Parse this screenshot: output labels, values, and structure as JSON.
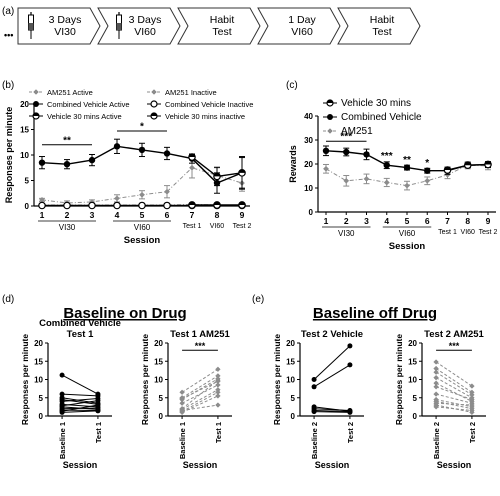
{
  "panel_labels": {
    "a": "(a)",
    "b": "(b)",
    "c": "(c)",
    "d": "(d)",
    "e": "(e)"
  },
  "timeline": {
    "ellipsis": "•••",
    "steps": [
      {
        "lines": [
          "3 Days",
          "VI30"
        ],
        "syringe": true
      },
      {
        "lines": [
          "3 Days",
          "VI60"
        ],
        "syringe": true
      },
      {
        "lines": [
          "Habit",
          "Test"
        ],
        "syringe": false
      },
      {
        "lines": [
          "1 Day",
          "VI60"
        ],
        "syringe": false
      },
      {
        "lines": [
          "Habit",
          "Test"
        ],
        "syringe": false
      }
    ]
  },
  "group_titles": {
    "d": "Baseline on Drug",
    "e": "Baseline off Drug"
  },
  "colors": {
    "black": "#000000",
    "gray": "#8c8c8c",
    "arrow_outline": "#333333"
  },
  "chart_data": [
    {
      "panel": "b",
      "type": "line",
      "ylabel": "Responses per minute",
      "xlabel": "Session",
      "ylim": [
        0,
        20
      ],
      "yticks": [
        0,
        5,
        10,
        15,
        20
      ],
      "x_ticks": [
        "1",
        "2",
        "3",
        "4",
        "5",
        "6",
        "7",
        "8",
        "9"
      ],
      "x_extra_labels": [
        {
          "text": "Test 1",
          "pos": 7
        },
        {
          "text": "VI60",
          "pos": 8
        },
        {
          "text": "Test 2",
          "pos": 9
        }
      ],
      "brackets": [
        {
          "text": "VI30",
          "from": 1,
          "to": 3
        },
        {
          "text": "VI60",
          "from": 4,
          "to": 6
        }
      ],
      "sig_bars": [
        {
          "from": 1,
          "to": 3,
          "y": 12.0,
          "text": "**"
        },
        {
          "from": 4,
          "to": 6,
          "y": 14.7,
          "text": "*"
        }
      ],
      "legend": [
        {
          "text": "AM251 Active",
          "marker": "diamond",
          "color": "#8c8c8c",
          "dash": true
        },
        {
          "text": "AM251 Inactive",
          "marker": "diamond",
          "color": "#8c8c8c",
          "dash": true
        },
        {
          "text": "Combined Vehicle Active",
          "marker": "circle",
          "color": "#000000",
          "dash": false
        },
        {
          "text": "Combined Vehicle Inactive",
          "marker": "circle-open",
          "color": "#000000",
          "dash": false
        },
        {
          "text": "Vehicle 30 mins Active",
          "marker": "half",
          "color": "#000000",
          "dash": false
        },
        {
          "text": "Vehicle 30 mins inactive",
          "marker": "half",
          "color": "#000000",
          "dash": false
        }
      ],
      "series": [
        {
          "name": "AM251 Active",
          "color": "#8c8c8c",
          "marker": "diamond",
          "dash": true,
          "x": [
            1,
            2,
            3,
            4,
            5,
            6,
            7,
            8,
            9
          ],
          "y": [
            1.2,
            0.6,
            0.8,
            1.5,
            2.2,
            2.8,
            7.5,
            6.0,
            4.5
          ],
          "err": [
            0.3,
            0.4,
            0.4,
            0.7,
            0.8,
            1.2,
            2.0,
            1.5,
            1.6
          ]
        },
        {
          "name": "AM251 Inactive",
          "color": "#8c8c8c",
          "marker": "diamond",
          "dash": true,
          "x": [
            1,
            2,
            3,
            4,
            5,
            6,
            7,
            8,
            9
          ],
          "y": [
            0.2,
            0.2,
            0.2,
            0.2,
            0.2,
            0.2,
            0.3,
            0.2,
            0.2
          ],
          "err": [
            0.1,
            0.1,
            0.1,
            0.1,
            0.1,
            0.1,
            0.2,
            0.1,
            0.1
          ]
        },
        {
          "name": "Combined Vehicle Active",
          "color": "#000000",
          "marker": "circle",
          "dash": false,
          "x": [
            1,
            2,
            3,
            4,
            5,
            6,
            7,
            8,
            9
          ],
          "y": [
            8.5,
            8.2,
            9.0,
            11.7,
            11.0,
            10.3,
            9.3,
            4.5,
            6.5
          ],
          "err": [
            1.2,
            0.9,
            1.1,
            1.4,
            1.3,
            1.2,
            0.9,
            2.0,
            3.2
          ]
        },
        {
          "name": "Combined Vehicle Inactive",
          "color": "#000000",
          "marker": "circle-open",
          "dash": false,
          "x": [
            1,
            2,
            3,
            4,
            5,
            6,
            7,
            8,
            9
          ],
          "y": [
            0.1,
            0.1,
            0.1,
            0.1,
            0.1,
            0.1,
            0.1,
            0.1,
            0.1
          ],
          "err": [
            0.05,
            0.05,
            0.05,
            0.05,
            0.05,
            0.05,
            0.05,
            0.05,
            0.05
          ]
        },
        {
          "name": "Vehicle 30 mins Active",
          "color": "#000000",
          "marker": "half",
          "dash": false,
          "x": [
            7,
            8,
            9
          ],
          "y": [
            9.6,
            5.8,
            6.5
          ],
          "err": [
            0.5,
            1.8,
            3.0
          ]
        },
        {
          "name": "Vehicle 30 mins inactive",
          "color": "#000000",
          "marker": "half",
          "dash": false,
          "x": [
            7,
            8,
            9
          ],
          "y": [
            0.2,
            0.2,
            0.2
          ],
          "err": [
            0.1,
            0.1,
            0.1
          ]
        }
      ]
    },
    {
      "panel": "c",
      "type": "line",
      "ylabel": "Rewards",
      "xlabel": "Session",
      "ylim": [
        0,
        40
      ],
      "yticks": [
        0,
        10,
        20,
        30,
        40
      ],
      "x_ticks": [
        "1",
        "2",
        "3",
        "4",
        "5",
        "6",
        "7",
        "8",
        "9"
      ],
      "x_extra_labels": [
        {
          "text": "Test 1",
          "pos": 7
        },
        {
          "text": "VI60",
          "pos": 8
        },
        {
          "text": "Test 2",
          "pos": 9
        }
      ],
      "brackets": [
        {
          "text": "VI30",
          "from": 1,
          "to": 3
        },
        {
          "text": "VI60",
          "from": 4,
          "to": 6
        }
      ],
      "sig_bars": [
        {
          "from": 1,
          "to": 3,
          "y": 29.5,
          "text": "***"
        }
      ],
      "point_stars": [
        {
          "x": 4,
          "y": 22.0,
          "text": "***"
        },
        {
          "x": 5,
          "y": 20.5,
          "text": "**"
        },
        {
          "x": 6,
          "y": 19.2,
          "text": "*"
        }
      ],
      "legend": [
        {
          "text": "Vehicle 30 mins",
          "marker": "half",
          "color": "#000000",
          "dash": false
        },
        {
          "text": "Combined Vehicle",
          "marker": "circle",
          "color": "#000000",
          "dash": false
        },
        {
          "text": "AM251",
          "marker": "diamond",
          "color": "#8c8c8c",
          "dash": true
        }
      ],
      "series": [
        {
          "name": "AM251",
          "color": "#8c8c8c",
          "marker": "diamond",
          "dash": true,
          "x": [
            1,
            2,
            3,
            4,
            5,
            6,
            7,
            8,
            9
          ],
          "y": [
            18.0,
            13.0,
            13.8,
            12.3,
            11.0,
            13.0,
            15.5,
            19.5,
            19.2
          ],
          "err": [
            1.8,
            2.2,
            2.0,
            1.7,
            1.8,
            1.6,
            1.6,
            1.5,
            1.6
          ]
        },
        {
          "name": "Combined Vehicle",
          "color": "#000000",
          "marker": "circle",
          "dash": false,
          "x": [
            1,
            2,
            3,
            4,
            5,
            6,
            7,
            8,
            9
          ],
          "y": [
            25.5,
            25.0,
            24.0,
            19.5,
            18.5,
            17.2,
            17.2,
            19.5,
            19.7
          ],
          "err": [
            2.0,
            1.6,
            2.2,
            1.4,
            1.0,
            1.0,
            1.5,
            1.0,
            1.2
          ]
        },
        {
          "name": "Vehicle 30 mins",
          "color": "#000000",
          "marker": "half",
          "dash": false,
          "x": [
            7,
            8,
            9
          ],
          "y": [
            17.5,
            19.5,
            19.8
          ],
          "err": [
            1.0,
            1.0,
            1.2
          ]
        }
      ]
    },
    {
      "panel": "d1",
      "type": "line",
      "title": "Combined Vehicle\nTest 1",
      "ylabel": "Responses per minute",
      "xlabel": "Session",
      "ylim": [
        0,
        20
      ],
      "yticks": [
        0,
        5,
        10,
        15,
        20
      ],
      "categories": [
        "Baseline 1",
        "Test 1"
      ],
      "color": "#000000",
      "marker": "circle",
      "pairs": [
        [
          11.2,
          6.0
        ],
        [
          6.0,
          5.5
        ],
        [
          5.0,
          3.5
        ],
        [
          4.5,
          3.2
        ],
        [
          4.0,
          4.8
        ],
        [
          3.2,
          2.5
        ],
        [
          2.8,
          4.2
        ],
        [
          2.5,
          1.8
        ],
        [
          2.0,
          2.2
        ],
        [
          1.6,
          1.5
        ],
        [
          1.3,
          3.0
        ],
        [
          1.0,
          1.4
        ]
      ]
    },
    {
      "panel": "d2",
      "type": "line",
      "title": "Test 1 AM251",
      "ylabel": "Responses per minute",
      "xlabel": "Session",
      "ylim": [
        0,
        20
      ],
      "yticks": [
        0,
        5,
        10,
        15,
        20
      ],
      "categories": [
        "Baseline 1",
        "Test 1"
      ],
      "color": "#8c8c8c",
      "marker": "diamond",
      "dash": true,
      "sig_bar": {
        "y": 18.0,
        "text": "***"
      },
      "pairs": [
        [
          6.5,
          12.8
        ],
        [
          5.0,
          11.0
        ],
        [
          4.8,
          9.5
        ],
        [
          4.5,
          10.2
        ],
        [
          3.5,
          8.5
        ],
        [
          2.0,
          9.8
        ],
        [
          1.8,
          7.2
        ],
        [
          1.2,
          6.5
        ],
        [
          1.0,
          5.5
        ],
        [
          1.5,
          3.0
        ]
      ]
    },
    {
      "panel": "e1",
      "type": "line",
      "title": "Test 2 Vehicle",
      "ylabel": "Responses per minute",
      "xlabel": "Session",
      "ylim": [
        0,
        20
      ],
      "yticks": [
        0,
        5,
        10,
        15,
        20
      ],
      "categories": [
        "Baseline 2",
        "Test 2"
      ],
      "color": "#000000",
      "marker": "circle",
      "pairs": [
        [
          10.0,
          19.2
        ],
        [
          8.0,
          14.0
        ],
        [
          2.5,
          1.3
        ],
        [
          2.0,
          1.5
        ],
        [
          1.5,
          1.2
        ],
        [
          1.2,
          1.0
        ]
      ]
    },
    {
      "panel": "e2",
      "type": "line",
      "title": "Test 2 AM251",
      "ylabel": "Responses per minute",
      "xlabel": "Session",
      "ylim": [
        0,
        20
      ],
      "yticks": [
        0,
        5,
        10,
        15,
        20
      ],
      "categories": [
        "Baseline 2",
        "Test 2"
      ],
      "color": "#8c8c8c",
      "marker": "diamond",
      "dash": true,
      "sig_bar": {
        "y": 18.0,
        "text": "***"
      },
      "pairs": [
        [
          14.8,
          8.2
        ],
        [
          13.0,
          6.5
        ],
        [
          12.0,
          5.8
        ],
        [
          10.5,
          5.0
        ],
        [
          9.0,
          4.0
        ],
        [
          8.0,
          4.5
        ],
        [
          6.0,
          3.5
        ],
        [
          4.5,
          2.5
        ],
        [
          4.0,
          2.0
        ],
        [
          3.5,
          3.0
        ],
        [
          3.0,
          1.0
        ],
        [
          2.5,
          1.5
        ]
      ]
    }
  ]
}
